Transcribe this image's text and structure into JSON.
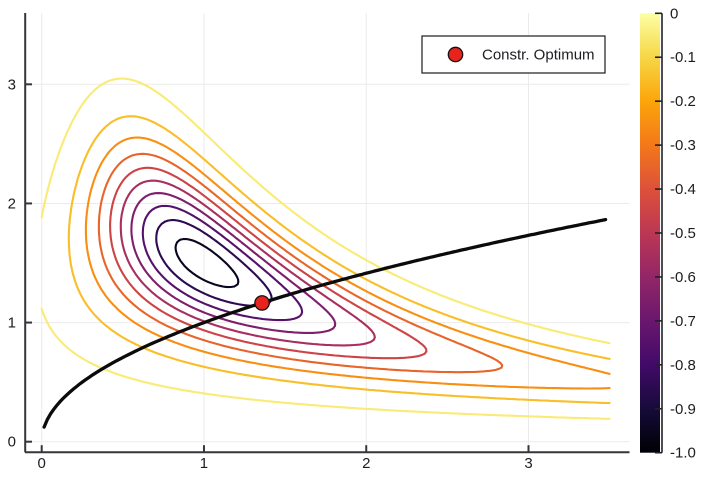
{
  "chart_data": {
    "type": "contour",
    "title": "",
    "x_axis": {
      "tick_values": [
        0,
        1,
        2,
        3
      ],
      "tick_labels": [
        "0",
        "1",
        "2",
        "3"
      ],
      "xlim": [
        -0.104,
        3.62
      ]
    },
    "y_axis": {
      "tick_values": [
        0,
        1,
        2,
        3
      ],
      "tick_labels": [
        "0",
        "1",
        "2",
        "3"
      ],
      "ylim": [
        -0.088,
        3.603
      ]
    },
    "grid": true,
    "surface_function_estimate": "f(x,y) = -exp(-((x*y-1.5)^2 + (y-1.5)^2)/0.8)",
    "surface_domain": {
      "x": [
        0,
        3.5
      ],
      "y": [
        0,
        3.5
      ]
    },
    "levels": [
      -0.05,
      -0.15,
      -0.25,
      -0.35,
      -0.45,
      -0.55,
      -0.65,
      -0.75,
      -0.85,
      -0.95
    ],
    "value_range": [
      -1,
      0
    ],
    "constraint_curve": {
      "equation": "y = sqrt(x)",
      "x_range": [
        0.015,
        3.48
      ],
      "color": "#0b0b0b"
    },
    "optimum_point": {
      "x": 1.358,
      "y": 1.165
    },
    "colorbar": {
      "tick_labels": [
        "0",
        "-0.1",
        "-0.2",
        "-0.3",
        "-0.4",
        "-0.5",
        "-0.6",
        "-0.7",
        "-0.8",
        "-0.9",
        "-1.0"
      ],
      "tick_values": [
        0,
        -0.1,
        -0.2,
        -0.3,
        -0.4,
        -0.5,
        -0.6,
        -0.7,
        -0.8,
        -0.9,
        -1.0
      ],
      "colormap": "inferno",
      "stops": [
        "#000004",
        "#160b39",
        "#420a68",
        "#6a176e",
        "#932667",
        "#bc3754",
        "#dd513a",
        "#f37819",
        "#fca50a",
        "#f6d746",
        "#fcffa4"
      ]
    },
    "legend": {
      "entries": [
        {
          "label": "Constr. Optimum",
          "marker": "circle",
          "marker_color": "#e8231e"
        }
      ]
    }
  },
  "colors": {
    "background": "#ffffff",
    "spine": "#35353a",
    "gridline": "#ebebeb",
    "marker_fill": "#e8231e",
    "marker_stroke": "#16100f",
    "legend_border": "#1b1b1b"
  }
}
